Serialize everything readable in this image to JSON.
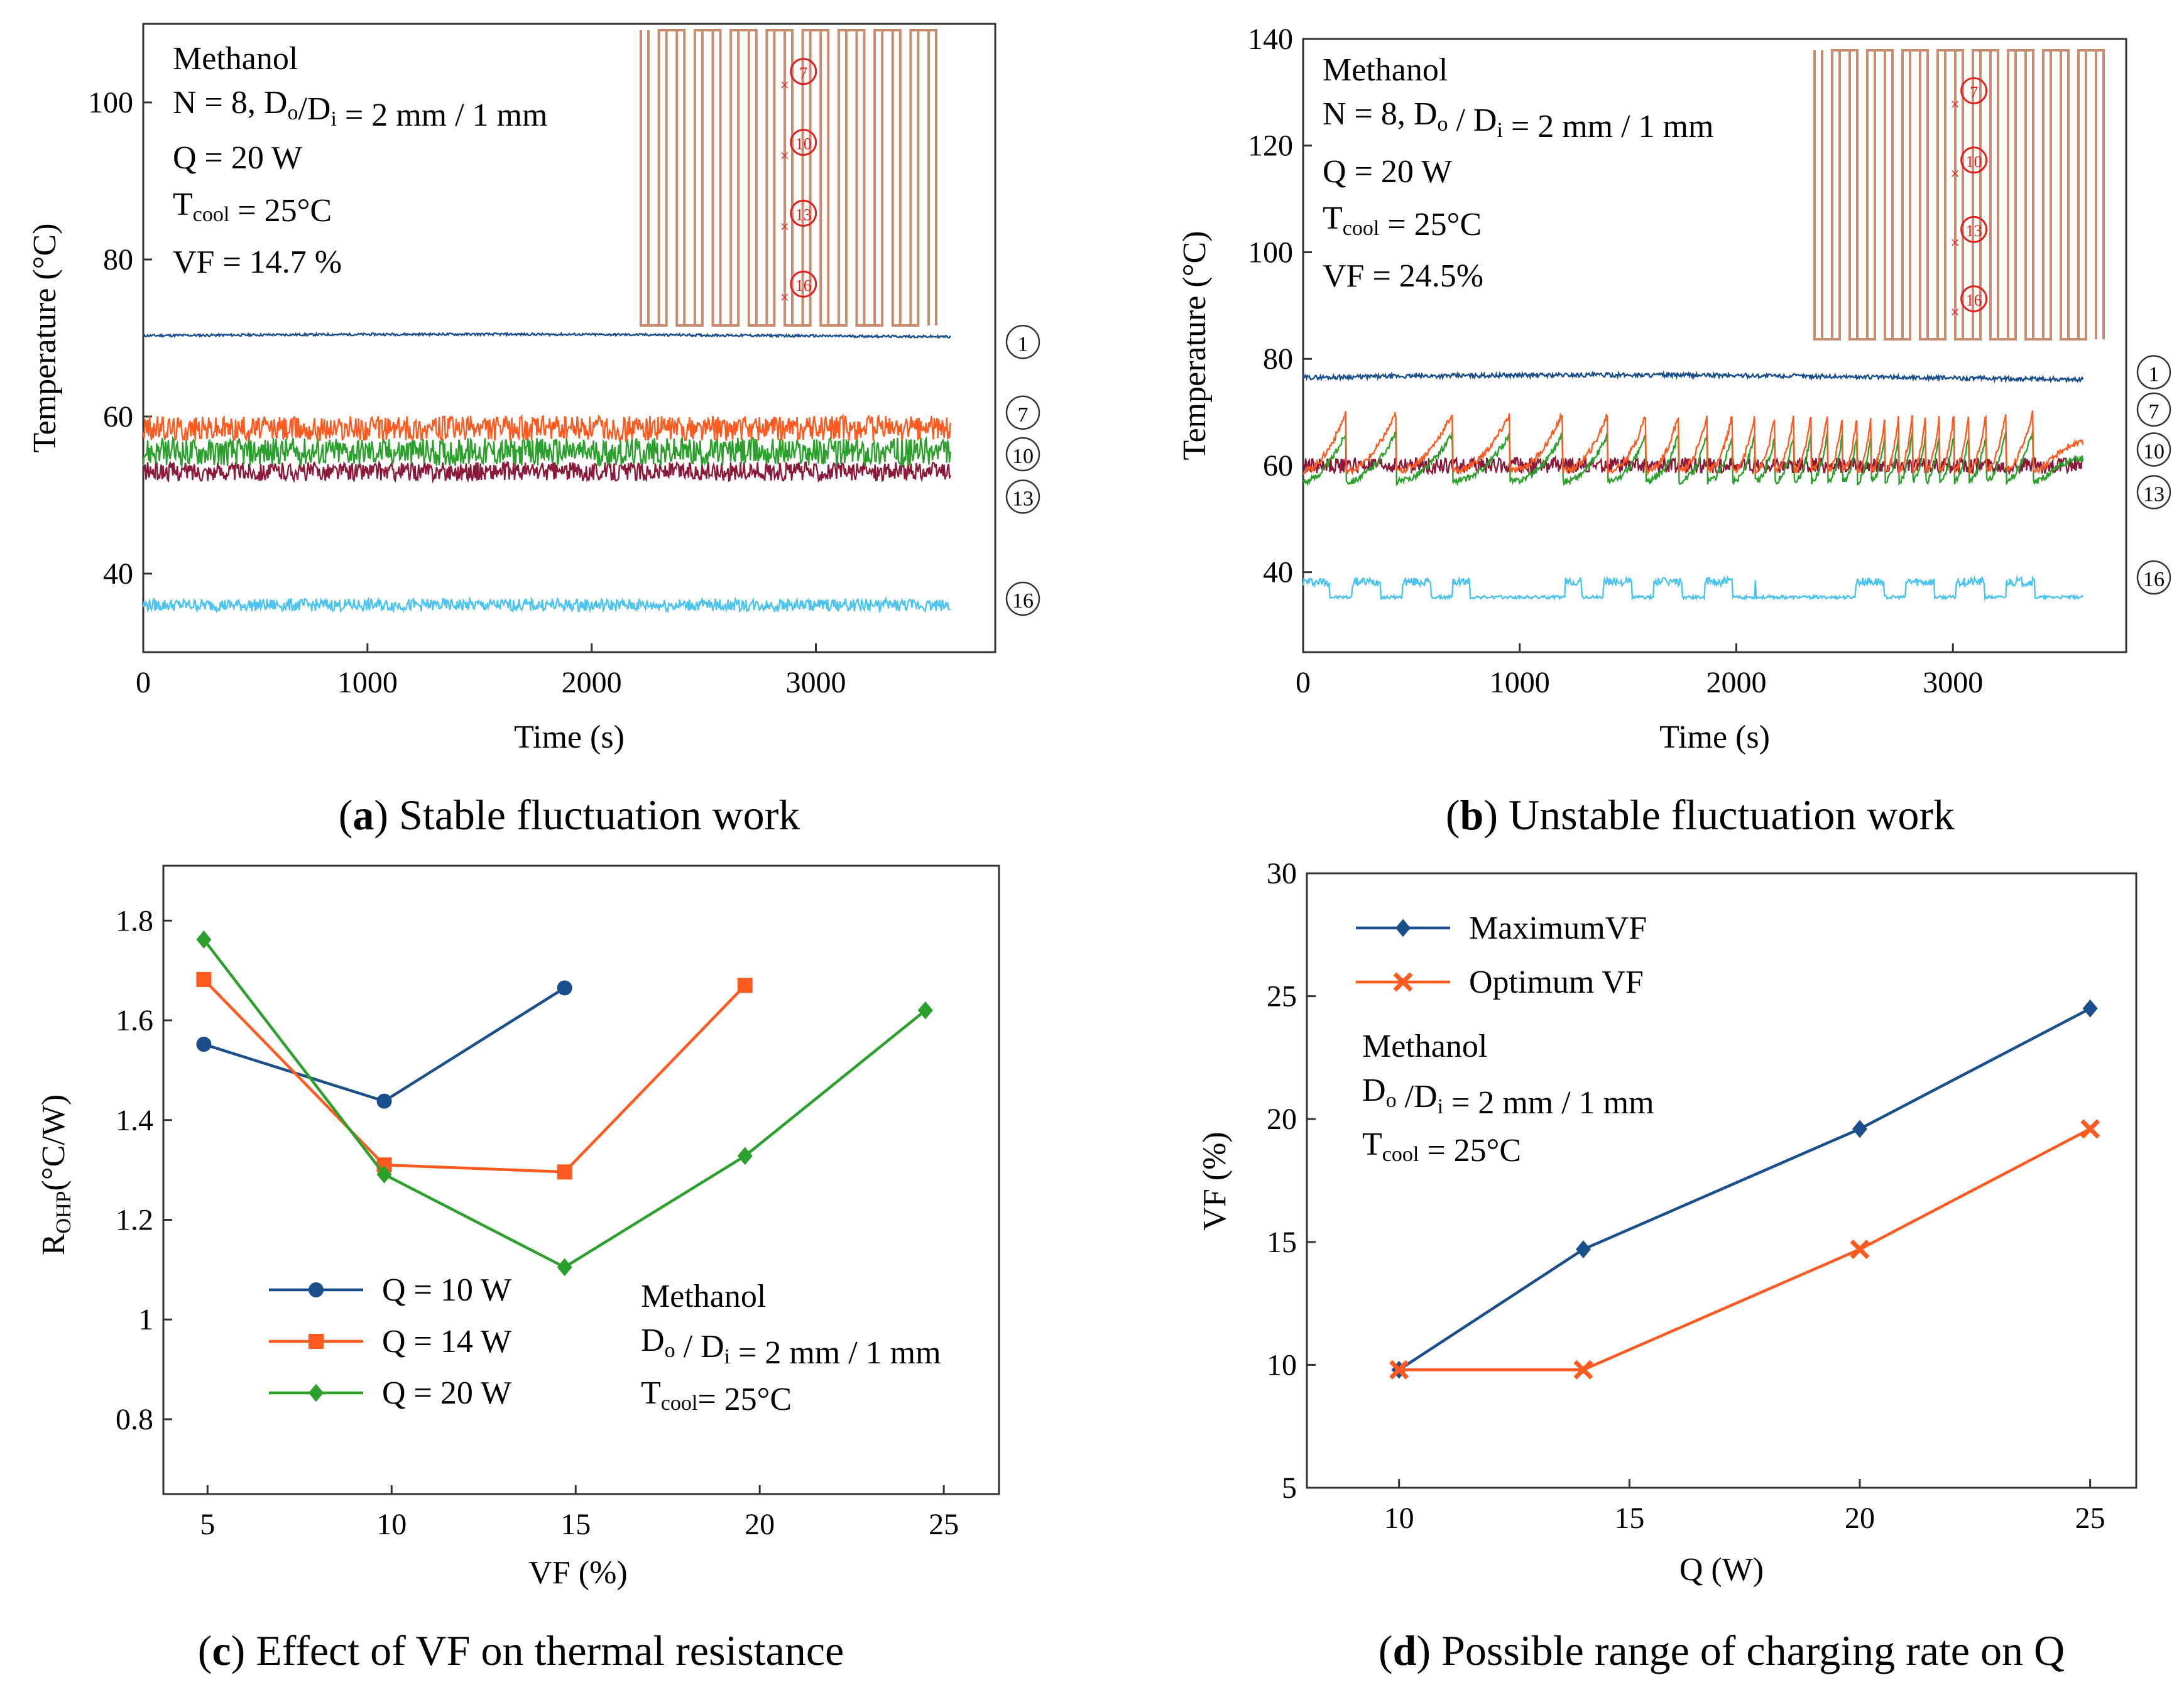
{
  "colors": {
    "blue": "#1a4f8c",
    "orange": "#ff5a1f",
    "green": "#2ca02c",
    "darkred": "#8b1a3a",
    "lightblue": "#4cc3f0",
    "copper": "#c98c6e",
    "marker_red": "#e02020"
  },
  "panels": {
    "a": {
      "caption_letter": "a",
      "caption_text": " Stable fluctuation work",
      "xlabel": "Time (s)",
      "ylabel": "Temperature (°C)",
      "annotation": [
        "Methanol",
        "N = 8, Do/Di = 2 mm / 1 mm",
        "Q = 20 W",
        "Tcool = 25°C",
        "VF = 14.7 %"
      ]
    },
    "b": {
      "caption_letter": "b",
      "caption_text": " Unstable fluctuation work",
      "xlabel": "Time (s)",
      "ylabel": "Temperature (°C)",
      "annotation": [
        "Methanol",
        "N = 8, Do / Di = 2 mm / 1 mm",
        "Q = 20 W",
        "Tcool = 25°C",
        "VF = 24.5%"
      ]
    },
    "c": {
      "caption_letter": "c",
      "caption_text": " Effect of VF on thermal resistance",
      "xlabel": "VF (%)",
      "ylabel": "ROHP(°C/W)",
      "annotation": [
        "Methanol",
        "Do / Di = 2 mm / 1 mm",
        "Tcool= 25°C"
      ]
    },
    "d": {
      "caption_letter": "d",
      "caption_text": " Possible range of charging rate on Q",
      "xlabel": "Q (W)",
      "ylabel": "VF  (%)",
      "annotation": [
        "Methanol",
        "Do /Di = 2 mm / 1 mm",
        "Tcool = 25°C"
      ]
    }
  },
  "chart_data": [
    {
      "panel": "a",
      "type": "line",
      "xlim": [
        0,
        3800
      ],
      "ylim": [
        30,
        110
      ],
      "xticks": [
        0,
        1000,
        2000,
        3000
      ],
      "yticks": [
        40,
        60,
        80,
        100
      ],
      "series": [
        {
          "name": "①",
          "base": 70.3,
          "amp": 0.3,
          "mode": "flat"
        },
        {
          "name": "⑦",
          "base": 58.5,
          "amp": 1.6,
          "mode": "noise"
        },
        {
          "name": "⑩",
          "base": 55.5,
          "amp": 1.8,
          "mode": "noise"
        },
        {
          "name": "⑬",
          "base": 53.0,
          "amp": 1.2,
          "mode": "noise"
        },
        {
          "name": "⑯",
          "base": 36.0,
          "amp": 0.8,
          "mode": "noise"
        }
      ],
      "label_y": [
        69.5,
        60.5,
        55.2,
        49.8,
        36.8
      ]
    },
    {
      "panel": "b",
      "type": "line",
      "xlim": [
        0,
        3800
      ],
      "ylim": [
        25,
        140
      ],
      "xticks": [
        0,
        1000,
        2000,
        3000
      ],
      "yticks": [
        40,
        60,
        80,
        100,
        120,
        140
      ],
      "series": [
        {
          "name": "①",
          "base": 76.5,
          "amp": 0.8,
          "mode": "flat"
        },
        {
          "name": "⑦",
          "base": 63.0,
          "amp": 12.0,
          "mode": "saw"
        },
        {
          "name": "⑩",
          "base": 61.0,
          "amp": 10.0,
          "mode": "saw"
        },
        {
          "name": "⑬",
          "base": 60.0,
          "amp": 1.5,
          "mode": "noise"
        },
        {
          "name": "⑯",
          "base": 35.0,
          "amp": 4.0,
          "mode": "burst"
        }
      ],
      "label_y": [
        77.5,
        70.5,
        63.0,
        55.0,
        39.0
      ]
    },
    {
      "panel": "c",
      "type": "line",
      "xlim": [
        3.8,
        26.5
      ],
      "ylim": [
        0.65,
        1.91
      ],
      "xticks": [
        5,
        10,
        15,
        20,
        25
      ],
      "yticks": [
        0.8,
        1,
        1.2,
        1.4,
        1.6,
        1.8
      ],
      "ytick_labels": [
        "0.8",
        "1",
        "1.2",
        "1.4",
        "1.6",
        "1.8"
      ],
      "series": [
        {
          "name": "Q = 10 W",
          "marker": "circle",
          "x": [
            4.9,
            9.8,
            14.7
          ],
          "y": [
            1.552,
            1.438,
            1.665
          ]
        },
        {
          "name": "Q = 14 W",
          "marker": "square",
          "x": [
            4.9,
            9.8,
            14.7,
            19.6
          ],
          "y": [
            1.682,
            1.31,
            1.296,
            1.67
          ]
        },
        {
          "name": "Q = 20 W",
          "marker": "diamond",
          "x": [
            4.9,
            9.8,
            14.7,
            19.6,
            24.5
          ],
          "y": [
            1.762,
            1.291,
            1.105,
            1.328,
            1.62
          ]
        }
      ]
    },
    {
      "panel": "d",
      "type": "line",
      "xlim": [
        8,
        26
      ],
      "ylim": [
        5,
        30
      ],
      "xticks": [
        10,
        15,
        20,
        25
      ],
      "yticks": [
        5,
        10,
        15,
        20,
        25,
        30
      ],
      "series": [
        {
          "name": "MaximumVF",
          "marker": "diamond",
          "x": [
            10,
            14,
            20,
            25
          ],
          "y": [
            9.8,
            14.7,
            19.6,
            24.5
          ]
        },
        {
          "name": "Optimum VF",
          "marker": "x",
          "x": [
            10,
            14,
            20,
            25
          ],
          "y": [
            9.8,
            9.8,
            14.7,
            19.6
          ]
        }
      ]
    }
  ]
}
